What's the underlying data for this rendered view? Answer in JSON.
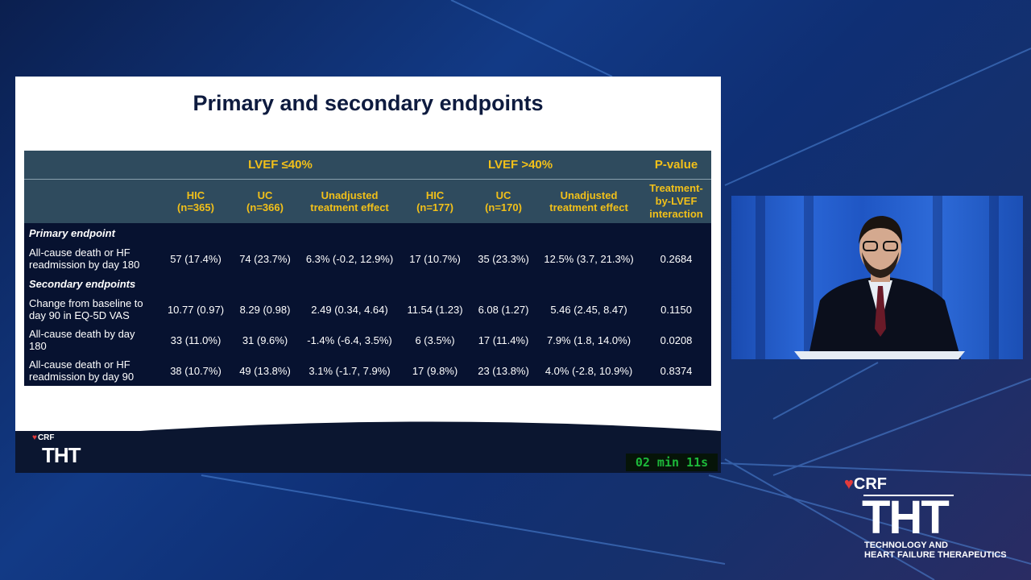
{
  "slide": {
    "title": "Primary and secondary endpoints",
    "footer_brand": "CRF",
    "footer_logo": "THT",
    "timer": "02 min 11s"
  },
  "table": {
    "group_headers": [
      "LVEF ≤40%",
      "LVEF >40%",
      "P-value"
    ],
    "sub_headers": [
      [
        "HIC",
        "(n=365)"
      ],
      [
        "UC",
        "(n=366)"
      ],
      [
        "Unadjusted",
        "treatment effect"
      ],
      [
        "HIC",
        "(n=177)"
      ],
      [
        "UC",
        "(n=170)"
      ],
      [
        "Unadjusted",
        "treatment effect"
      ],
      [
        "Treatment-",
        "by-LVEF",
        "interaction"
      ]
    ],
    "sections": {
      "primary": "Primary endpoint",
      "secondary": "Secondary endpoints"
    },
    "rows": [
      {
        "label": [
          "All-cause death or HF",
          "readmission by day 180"
        ],
        "cells": [
          "57 (17.4%)",
          "74 (23.7%)",
          "6.3% (-0.2, 12.9%)",
          "17 (10.7%)",
          "35 (23.3%)",
          "12.5% (3.7, 21.3%)",
          "0.2684"
        ]
      },
      {
        "label": [
          "Change from baseline to",
          "day 90 in EQ-5D VAS"
        ],
        "cells": [
          "10.77 (0.97)",
          "8.29 (0.98)",
          "2.49 (0.34, 4.64)",
          "11.54 (1.23)",
          "6.08 (1.27)",
          "5.46 (2.45, 8.47)",
          "0.1150"
        ]
      },
      {
        "label": [
          "All-cause death by day",
          "180"
        ],
        "cells": [
          "33 (11.0%)",
          "31 (9.6%)",
          "-1.4% (-6.4, 3.5%)",
          "6 (3.5%)",
          "17 (11.4%)",
          "7.9% (1.8, 14.0%)",
          "0.0208"
        ]
      },
      {
        "label": [
          "All-cause death or HF",
          "readmission by day 90"
        ],
        "cells": [
          "38 (10.7%)",
          "49 (13.8%)",
          "3.1% (-1.7, 7.9%)",
          "17 (9.8%)",
          "23 (13.8%)",
          "4.0% (-2.8, 10.9%)",
          "0.8374"
        ]
      }
    ]
  },
  "branding": {
    "brand": "CRF",
    "logo": "THT",
    "tagline_line1": "TECHNOLOGY AND",
    "tagline_line2": "HEART FAILURE THERAPEUTICS"
  },
  "colors": {
    "header_bg": "#2f4b5e",
    "header_text": "#f2c019",
    "body_bg": "#071230",
    "title": "#0e1b3f",
    "timer": "#1db93a"
  }
}
